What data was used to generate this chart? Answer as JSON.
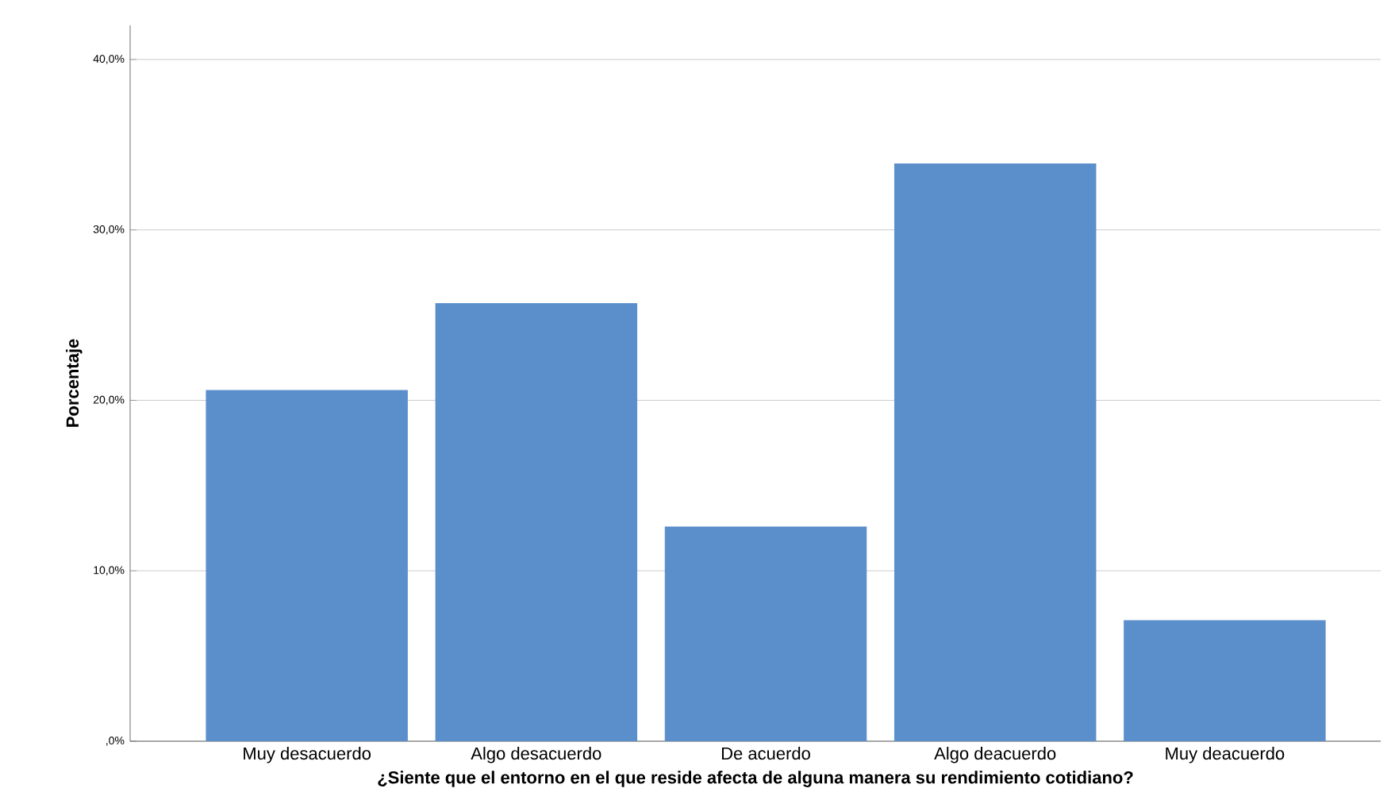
{
  "chart_data": {
    "type": "bar",
    "xlabel": "¿Siente que el entorno en el que reside afecta de alguna manera su rendimiento cotidiano?",
    "ylabel": "Porcentaje",
    "categories": [
      "Muy desacuerdo",
      "Algo desacuerdo",
      "De acuerdo",
      "Algo deacuerdo",
      "Muy deacuerdo"
    ],
    "values": [
      20.6,
      25.7,
      12.6,
      33.9,
      7.1
    ],
    "color": "#5b8fcb",
    "ylim": [
      0,
      42
    ],
    "yticks": [
      {
        "value": 0,
        "label": ",0%"
      },
      {
        "value": 10,
        "label": "10,0%"
      },
      {
        "value": 20,
        "label": "20,0%"
      },
      {
        "value": 30,
        "label": "30,0%"
      },
      {
        "value": 40,
        "label": "40,0%"
      }
    ],
    "grid": "y"
  }
}
